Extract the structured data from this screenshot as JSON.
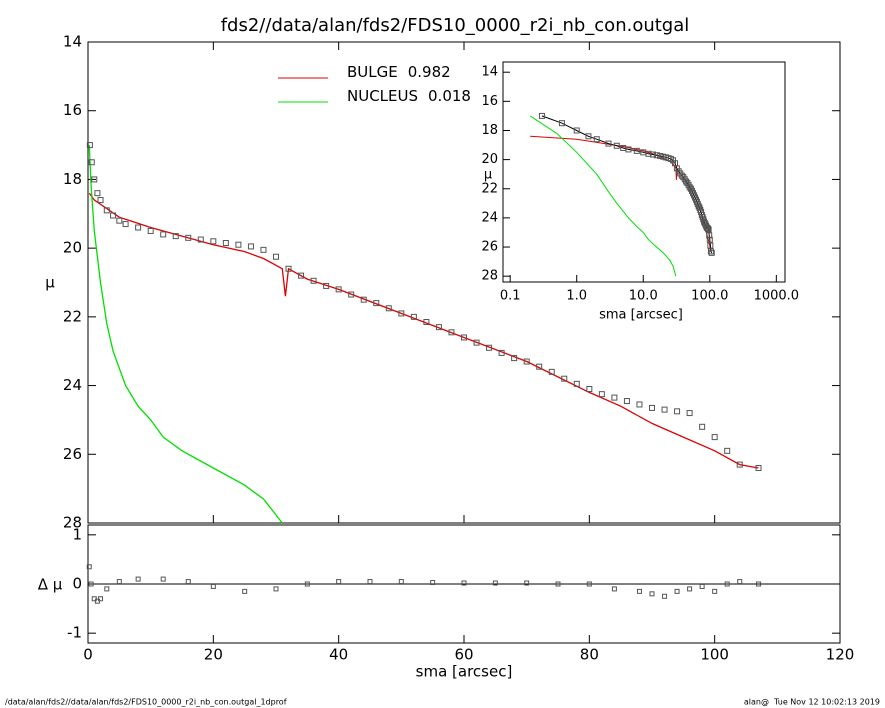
{
  "chart_data": {
    "type": "line",
    "title": "fds2//data/alan/fds2/FDS10_0000_r2i_nb_con.outgal",
    "y_label": "μ",
    "xlim": [
      0,
      120
    ],
    "xticks": [
      0,
      20,
      40,
      60,
      80,
      100,
      120
    ],
    "ylim": [
      14,
      28
    ],
    "yticks": [
      14,
      16,
      18,
      20,
      22,
      24,
      26,
      28
    ],
    "data_points": {
      "x": [
        0.3,
        0.6,
        1,
        1.5,
        2,
        3,
        4,
        5,
        6,
        8,
        10,
        12,
        14,
        16,
        18,
        20,
        22,
        24,
        26,
        28,
        30,
        32,
        34,
        36,
        38,
        40,
        42,
        44,
        46,
        48,
        50,
        52,
        54,
        56,
        58,
        60,
        62,
        64,
        66,
        68,
        70,
        72,
        74,
        76,
        78,
        80,
        82,
        84,
        86,
        88,
        90,
        92,
        94,
        96,
        98,
        100,
        102,
        104,
        107
      ],
      "values": [
        17.0,
        17.5,
        18.0,
        18.4,
        18.6,
        18.9,
        19.05,
        19.2,
        19.3,
        19.4,
        19.5,
        19.6,
        19.65,
        19.7,
        19.75,
        19.8,
        19.85,
        19.9,
        19.95,
        20.05,
        20.25,
        20.6,
        20.8,
        20.95,
        21.1,
        21.2,
        21.35,
        21.5,
        21.6,
        21.75,
        21.9,
        22.0,
        22.15,
        22.3,
        22.45,
        22.6,
        22.75,
        22.9,
        23.05,
        23.2,
        23.3,
        23.45,
        23.6,
        23.8,
        23.95,
        24.1,
        24.25,
        24.35,
        24.45,
        24.55,
        24.65,
        24.7,
        24.75,
        24.8,
        25.2,
        25.5,
        25.9,
        26.3,
        26.4
      ],
      "color": "#555555"
    },
    "series": [
      {
        "name": "BULGE",
        "fraction": 0.982,
        "color": "#e00000",
        "x": [
          0.2,
          1,
          5,
          10,
          15,
          20,
          25,
          28,
          30,
          31,
          31.5,
          32,
          35,
          40,
          50,
          60,
          70,
          80,
          85,
          90,
          95,
          100,
          104,
          107
        ],
        "values": [
          18.4,
          18.6,
          19.1,
          19.4,
          19.65,
          19.9,
          20.1,
          20.3,
          20.5,
          20.6,
          21.4,
          20.6,
          20.9,
          21.2,
          21.9,
          22.6,
          23.3,
          24.2,
          24.6,
          25.1,
          25.5,
          25.9,
          26.3,
          26.4
        ]
      },
      {
        "name": "NUCLEUS",
        "fraction": 0.018,
        "color": "#00e000",
        "x": [
          0.2,
          0.5,
          1,
          2,
          3,
          4,
          6,
          8,
          10,
          12,
          15,
          20,
          25,
          28,
          31
        ],
        "values": [
          17.0,
          18.2,
          19.5,
          21.0,
          22.2,
          23.0,
          24.0,
          24.6,
          25.0,
          25.5,
          25.9,
          26.4,
          26.9,
          27.3,
          28.0
        ]
      }
    ],
    "residual": {
      "x_label": "sma [arcsec]",
      "y_label": "Δ μ",
      "ylim": [
        -1.2,
        1.2
      ],
      "yticks": [
        1,
        0,
        -1
      ],
      "x": [
        0.2,
        0.5,
        1,
        1.5,
        2,
        3,
        5,
        8,
        12,
        16,
        20,
        25,
        30,
        35,
        40,
        45,
        50,
        55,
        60,
        65,
        70,
        75,
        80,
        84,
        88,
        90,
        92,
        94,
        96,
        98,
        100,
        102,
        104,
        107
      ],
      "values": [
        0.35,
        0.0,
        -0.3,
        -0.35,
        -0.3,
        -0.1,
        0.05,
        0.1,
        0.1,
        0.05,
        -0.05,
        -0.15,
        -0.1,
        0.0,
        0.05,
        0.05,
        0.05,
        0.03,
        0.02,
        0.02,
        0.02,
        0.0,
        0.0,
        -0.1,
        -0.15,
        -0.2,
        -0.25,
        -0.15,
        -0.1,
        -0.05,
        -0.15,
        0.0,
        0.05,
        0.0
      ]
    },
    "inset": {
      "x_label": "sma [arcsec]",
      "y_label": "μ",
      "log_x": true,
      "xlim": [
        0.078,
        1350
      ],
      "xticks": [
        0.1,
        {
          "value": 1,
          "label": "1.0"
        },
        {
          "value": 10,
          "label": "10.0"
        },
        {
          "value": 100,
          "label": "100.0"
        },
        {
          "value": 1000,
          "label": "1000.0"
        }
      ],
      "ylim": [
        13.3,
        28.4
      ],
      "yticks": [
        14,
        16,
        18,
        20,
        22,
        24,
        26,
        28
      ]
    },
    "footer_left": "/data/alan/fds2//data/alan/fds2/FDS10_0000_r2i_nb_con.outgal_1dprof",
    "footer_right": "alan@  Tue Nov 12 10:02:13 2019"
  }
}
